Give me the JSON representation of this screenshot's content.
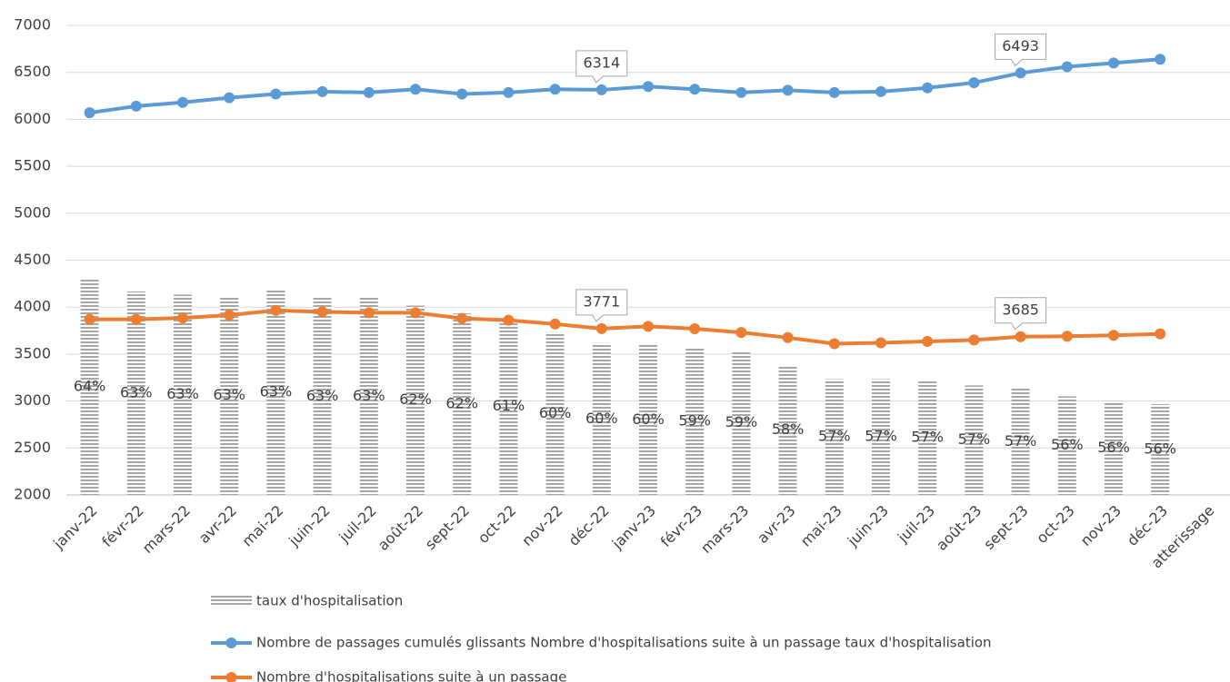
{
  "chart_data": {
    "type": "bar-line",
    "categories": [
      "janv-22",
      "févr-22",
      "mars-22",
      "avr-22",
      "mai-22",
      "juin-22",
      "juil-22",
      "août-22",
      "sept-22",
      "oct-22",
      "nov-22",
      "déc-22",
      "janv-23",
      "févr-23",
      "mars-23",
      "avr-23",
      "mai-23",
      "juin-23",
      "juil-23",
      "août-23",
      "sept-23",
      "oct-23",
      "nov-23",
      "déc-23",
      "atterissage"
    ],
    "ylim": [
      2000,
      7000
    ],
    "yticks": [
      2000,
      2500,
      3000,
      3500,
      4000,
      4500,
      5000,
      5500,
      6000,
      6500,
      7000
    ],
    "y2lim": [
      50,
      80
    ],
    "grid": true,
    "legend": "bottom",
    "series": [
      {
        "name": "taux d'hospitalisation",
        "type": "bar",
        "axis": "y2",
        "color": "#a6a6a6",
        "values": [
          63.8,
          63.0,
          62.8,
          62.7,
          63.1,
          62.6,
          62.6,
          62.1,
          61.6,
          61.3,
          60.4,
          59.7,
          59.6,
          59.4,
          59.2,
          58.3,
          57.4,
          57.4,
          57.3,
          57.0,
          56.8,
          56.3,
          56.0,
          55.8,
          null
        ],
        "value_labels": [
          "64%",
          "63%",
          "63%",
          "63%",
          "63%",
          "63%",
          "63%",
          "62%",
          "62%",
          "61%",
          "60%",
          "60%",
          "60%",
          "59%",
          "59%",
          "58%",
          "57%",
          "57%",
          "57%",
          "57%",
          "57%",
          "56%",
          "56%",
          "56%",
          null
        ]
      },
      {
        "name": "Nombre de passages cumulés glissants Nombre d'hospitalisations suite à un passage taux d'hospitalisation",
        "type": "line",
        "color": "#5b9bd5",
        "values": [
          6070,
          6140,
          6180,
          6230,
          6270,
          6295,
          6285,
          6320,
          6270,
          6285,
          6320,
          6314,
          6350,
          6320,
          6285,
          6310,
          6285,
          6295,
          6335,
          6390,
          6493,
          6560,
          6600,
          6640,
          null
        ],
        "label_indices": [
          11,
          20
        ]
      },
      {
        "name": "Nombre d'hospitalisations suite à un passage",
        "type": "line",
        "color": "#ed7d31",
        "values": [
          3870,
          3870,
          3885,
          3915,
          3965,
          3950,
          3940,
          3940,
          3880,
          3860,
          3820,
          3771,
          3795,
          3770,
          3730,
          3675,
          3610,
          3620,
          3635,
          3650,
          3685,
          3690,
          3700,
          3715,
          null
        ],
        "label_indices": [
          11,
          20
        ]
      }
    ]
  }
}
